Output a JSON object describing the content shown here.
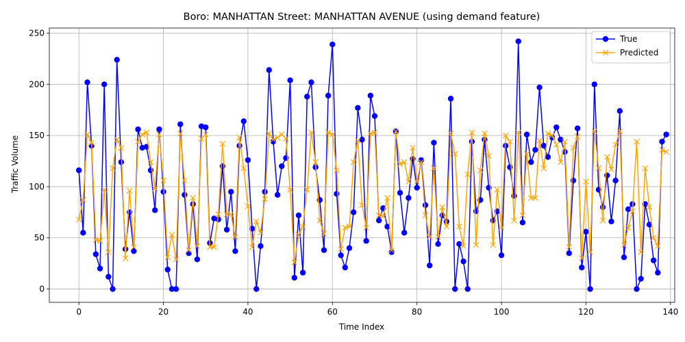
{
  "chart_data": {
    "type": "line",
    "title": "Boro: MANHATTAN Street: MANHATTAN AVENUE (using demand feature)",
    "xlabel": "Time Index",
    "ylabel": "Traffic Volume",
    "xlim": [
      -7,
      141
    ],
    "ylim": [
      -13,
      255
    ],
    "xticks": [
      0,
      20,
      40,
      60,
      80,
      100,
      120,
      140
    ],
    "yticks": [
      0,
      50,
      100,
      150,
      200,
      250
    ],
    "grid": true,
    "legend_position": "top-right",
    "series": [
      {
        "name": "True",
        "color": "#0000ff",
        "marker": "circle",
        "values": [
          116,
          55,
          202,
          140,
          34,
          20,
          200,
          12,
          0,
          224,
          124,
          39,
          75,
          37,
          156,
          138,
          139,
          116,
          77,
          156,
          95,
          19,
          0,
          0,
          161,
          92,
          35,
          83,
          29,
          159,
          158,
          45,
          69,
          68,
          120,
          58,
          95,
          37,
          140,
          164,
          126,
          59,
          0,
          42,
          95,
          214,
          144,
          92,
          120,
          128,
          204,
          11,
          72,
          16,
          188,
          202,
          119,
          87,
          38,
          189,
          239,
          93,
          33,
          21,
          40,
          75,
          177,
          146,
          47,
          189,
          169,
          67,
          79,
          61,
          36,
          154,
          94,
          55,
          89,
          127,
          99,
          126,
          82,
          23,
          143,
          44,
          72,
          66,
          186,
          0,
          44,
          27,
          0,
          144,
          76,
          87,
          146,
          99,
          67,
          76,
          33,
          140,
          119,
          91,
          242,
          65,
          151,
          124,
          136,
          197,
          140,
          129,
          148,
          158,
          146,
          134,
          35,
          106,
          157,
          21,
          56,
          0,
          200,
          97,
          80,
          111,
          66,
          106,
          174,
          31,
          78,
          83,
          0,
          10,
          83,
          63,
          28,
          16,
          144,
          151
        ]
      },
      {
        "name": "Predicted",
        "color": "#ffa500",
        "marker": "x",
        "values": [
          68,
          87,
          151,
          143,
          48,
          47,
          97,
          36,
          118,
          146,
          138,
          30,
          96,
          41,
          144,
          151,
          153,
          124,
          98,
          151,
          106,
          31,
          53,
          29,
          152,
          106,
          38,
          89,
          42,
          147,
          151,
          41,
          41,
          73,
          142,
          73,
          73,
          51,
          148,
          118,
          81,
          41,
          66,
          55,
          88,
          152,
          146,
          148,
          151,
          147,
          97,
          26,
          53,
          61,
          97,
          153,
          124,
          67,
          54,
          153,
          151,
          116,
          39,
          60,
          61,
          124,
          145,
          82,
          60,
          152,
          153,
          72,
          71,
          89,
          38,
          154,
          122,
          124,
          105,
          138,
          105,
          124,
          72,
          51,
          118,
          51,
          80,
          61,
          152,
          132,
          61,
          42,
          112,
          153,
          43,
          116,
          152,
          130,
          43,
          97,
          60,
          150,
          144,
          67,
          153,
          72,
          132,
          89,
          89,
          145,
          118,
          152,
          150,
          141,
          124,
          144,
          41,
          138,
          149,
          30,
          105,
          36,
          154,
          118,
          67,
          129,
          117,
          141,
          154,
          43,
          60,
          76,
          144,
          36,
          118,
          80,
          50,
          42,
          136,
          134
        ]
      }
    ]
  }
}
